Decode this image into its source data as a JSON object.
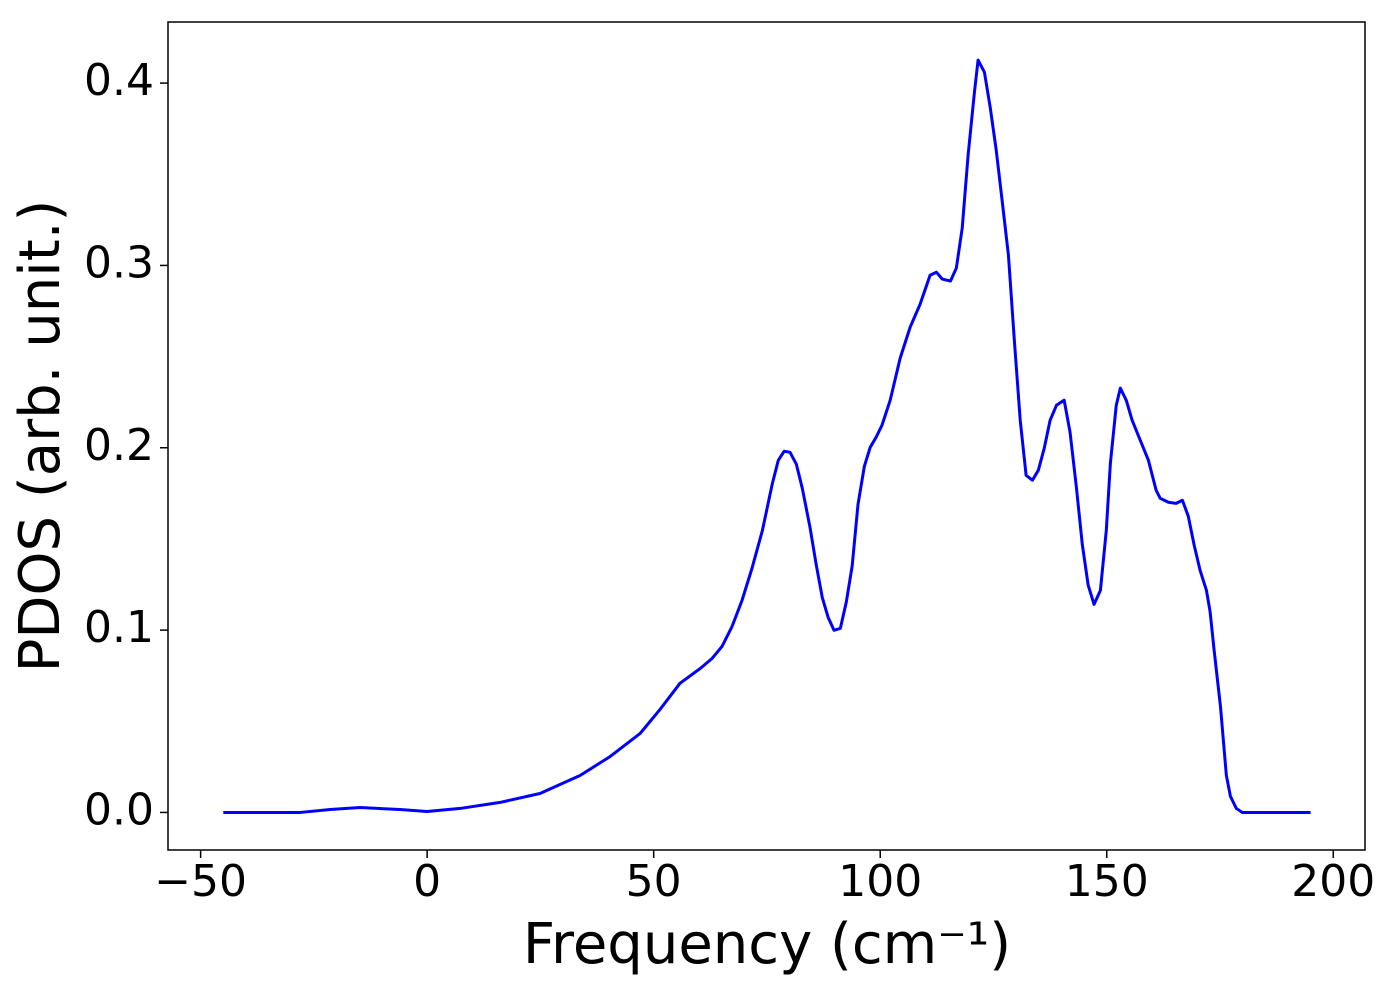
{
  "chart_data": {
    "type": "line",
    "xlabel": "Frequency (cm⁻¹)",
    "ylabel": "PDOS (arb. unit.)",
    "color": "#0000ff",
    "x": [
      -45,
      -28.0,
      -21.4,
      -14.8,
      -6.0,
      0,
      7.3,
      16.1,
      24.9,
      33.8,
      40.4,
      47.0,
      51.4,
      55.8,
      60.3,
      62.9,
      65.1,
      67.3,
      69.5,
      71.7,
      74.0,
      76.2,
      77.5,
      78.8,
      80.1,
      81.5,
      82.8,
      84.5,
      85.9,
      87.2,
      88.5,
      89.8,
      91.2,
      92.5,
      93.8,
      95.1,
      96.5,
      97.8,
      99.1,
      100.4,
      102.2,
      104.4,
      106.6,
      108.8,
      111.0,
      112.4,
      113.7,
      115.5,
      116.8,
      118.1,
      119.4,
      120.8,
      121.6,
      123.0,
      124.3,
      125.6,
      126.9,
      128.3,
      129.6,
      130.9,
      132.2,
      133.6,
      134.9,
      136.2,
      137.5,
      138.9,
      140.6,
      141.9,
      143.3,
      144.6,
      145.9,
      147.2,
      148.6,
      149.9,
      150.8,
      152.1,
      153.0,
      154.3,
      155.6,
      157.4,
      159.2,
      160.9,
      161.8,
      163.6,
      165.3,
      166.7,
      168.0,
      169.3,
      170.6,
      172.0,
      172.8,
      173.7,
      175.1,
      176.4,
      177.3,
      178.6,
      179.9,
      181.7,
      195
    ],
    "values": [
      0,
      0,
      0.0016,
      0.0027,
      0.0016,
      0.0005,
      0.0022,
      0.0055,
      0.0104,
      0.0203,
      0.0307,
      0.0433,
      0.0565,
      0.0708,
      0.079,
      0.0845,
      0.0911,
      0.102,
      0.1163,
      0.1339,
      0.1547,
      0.1805,
      0.1931,
      0.1981,
      0.1975,
      0.1909,
      0.1778,
      0.1564,
      0.1355,
      0.118,
      0.107,
      0.0999,
      0.101,
      0.1152,
      0.135,
      0.169,
      0.1898,
      0.2003,
      0.2058,
      0.2124,
      0.2261,
      0.2491,
      0.2661,
      0.2787,
      0.2946,
      0.2963,
      0.2925,
      0.2914,
      0.2985,
      0.3205,
      0.3605,
      0.3951,
      0.4126,
      0.406,
      0.3863,
      0.3633,
      0.3358,
      0.3056,
      0.259,
      0.2151,
      0.1849,
      0.1822,
      0.1877,
      0.1997,
      0.2151,
      0.2233,
      0.2261,
      0.2085,
      0.1783,
      0.147,
      0.1246,
      0.1141,
      0.1218,
      0.1547,
      0.1915,
      0.2233,
      0.2327,
      0.2261,
      0.2151,
      0.2041,
      0.1931,
      0.1767,
      0.1723,
      0.1701,
      0.1695,
      0.1712,
      0.1624,
      0.1465,
      0.1328,
      0.1218,
      0.1103,
      0.0889,
      0.0581,
      0.0203,
      0.0088,
      0.0022,
      0,
      0,
      0
    ],
    "xlim": [
      -57.2,
      207
    ],
    "ylim": [
      -0.0206,
      0.4335
    ],
    "xticks": [
      {
        "value": -50,
        "label": "−50"
      },
      0,
      50,
      100,
      150,
      200
    ],
    "yticks": [
      {
        "value": 0,
        "label": "0.0"
      },
      0.1,
      0.2,
      0.3,
      0.4
    ],
    "grid": false
  }
}
